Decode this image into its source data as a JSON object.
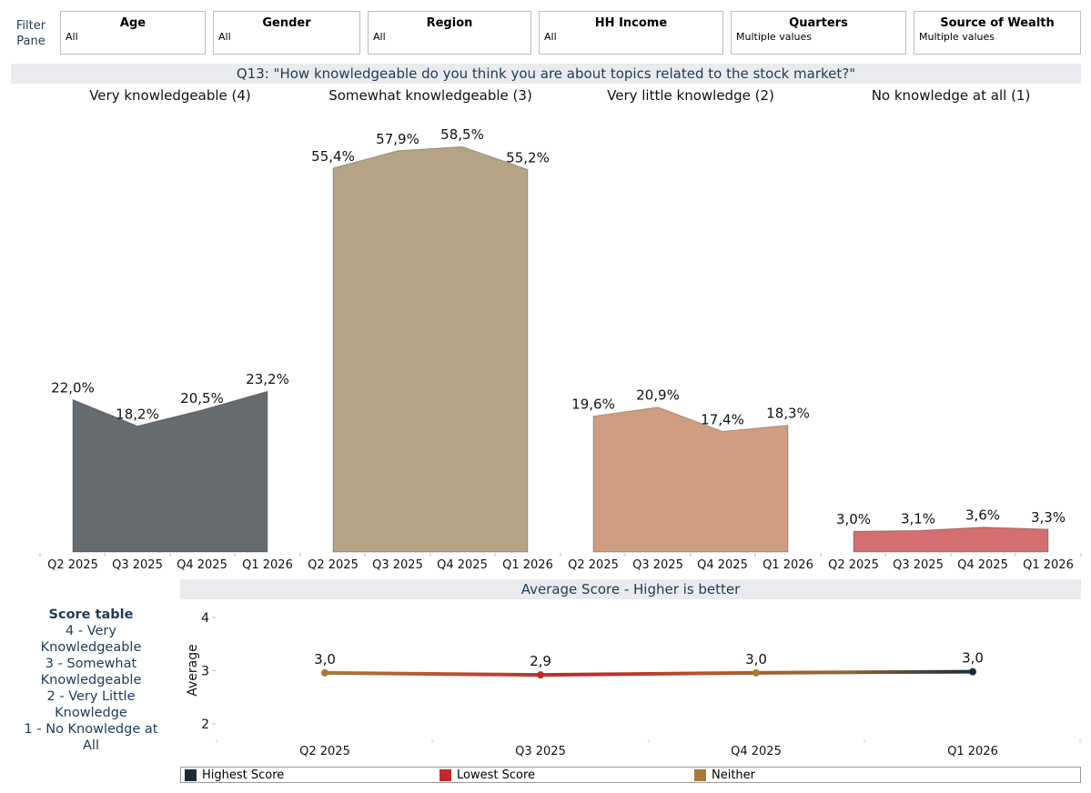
{
  "filters": {
    "pane_label": "Filter Pane",
    "items": [
      {
        "title": "Age",
        "value": "All"
      },
      {
        "title": "Gender",
        "value": "All"
      },
      {
        "title": "Region",
        "value": "All"
      },
      {
        "title": "HH Income",
        "value": "All"
      },
      {
        "title": "Quarters",
        "value": "Multiple values"
      },
      {
        "title": "Source of Wealth",
        "value": "Multiple values"
      }
    ]
  },
  "question_title": "Q13: \"How knowledgeable do you think you are about topics related to the stock market?\"",
  "avg_title": "Average Score - Higher is better",
  "score_table": {
    "title": "Score table",
    "lines": [
      "4 - Very Knowledgeable",
      "3 - Somewhat Knowledgeable",
      "2 - Very Little Knowledge",
      "1 - No Knowledge at All"
    ]
  },
  "legend": [
    {
      "label": "Highest Score",
      "color": "#1c2b3a"
    },
    {
      "label": "Lowest Score",
      "color": "#c0282d"
    },
    {
      "label": "Neither",
      "color": "#a77a3a"
    }
  ],
  "chart_data": [
    {
      "type": "area",
      "title": "Q13: \"How knowledgeable do you think you are about topics related to the stock market?\"",
      "categories": [
        "Q2 2025",
        "Q3 2025",
        "Q4 2025",
        "Q1 2026"
      ],
      "ylim": [
        0,
        70
      ],
      "series": [
        {
          "name": "Very knowledgeable (4)",
          "values": [
            22.0,
            18.2,
            20.5,
            23.2
          ],
          "labels": [
            "22,0%",
            "18,2%",
            "20,5%",
            "23,2%"
          ],
          "color": "#656b6e"
        },
        {
          "name": "Somewhat knowledgeable (3)",
          "values": [
            55.4,
            57.9,
            58.5,
            55.2
          ],
          "labels": [
            "55,4%",
            "57,9%",
            "58,5%",
            "55,2%"
          ],
          "color": "#b5a385"
        },
        {
          "name": "Very little knowledge (2)",
          "values": [
            19.6,
            20.9,
            17.4,
            18.3
          ],
          "labels": [
            "19,6%",
            "20,9%",
            "17,4%",
            "18,3%"
          ],
          "color": "#cf9d80"
        },
        {
          "name": "No knowledge at all (1)",
          "values": [
            3.0,
            3.1,
            3.6,
            3.3
          ],
          "labels": [
            "3,0%",
            "3,1%",
            "3,6%",
            "3,3%"
          ],
          "color": "#d46e71"
        }
      ]
    },
    {
      "type": "line",
      "title": "Average Score - Higher is better",
      "categories": [
        "Q2 2025",
        "Q3 2025",
        "Q4 2025",
        "Q1 2026"
      ],
      "values": [
        2.96,
        2.92,
        2.96,
        2.98
      ],
      "labels": [
        "3,0",
        "2,9",
        "3,0",
        "3,0"
      ],
      "point_colors": [
        "#a77a3a",
        "#c0282d",
        "#a77a3a",
        "#1c2b3a"
      ],
      "ylabel": "Average",
      "ylim": [
        1.8,
        4.2
      ],
      "yticks": [
        "2",
        "3",
        "4"
      ]
    }
  ]
}
